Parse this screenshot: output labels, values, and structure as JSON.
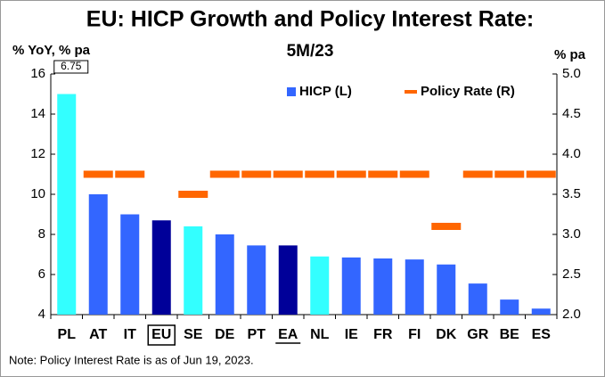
{
  "chart_data": {
    "type": "bar_line",
    "title": "EU: HICP Growth and Policy Interest Rate:",
    "subtitle": "5M/23",
    "y_label": "% YoY, % pa",
    "y2_label": "% pa",
    "note": "Note: Policy Interest Rate is as of Jun 19, 2023.",
    "categories": [
      "PL",
      "AT",
      "IT",
      "EU",
      "SE",
      "DE",
      "PT",
      "EA",
      "NL",
      "IE",
      "FR",
      "FI",
      "DK",
      "GR",
      "BE",
      "ES"
    ],
    "boxed_categories": [
      3
    ],
    "underlined_categories": [
      7
    ],
    "series": [
      {
        "name": "HICP (L)",
        "color": "#3366ff",
        "axis": "y",
        "bar_colors": [
          "#33ffff",
          "#3366ff",
          "#3366ff",
          "#000099",
          "#33ffff",
          "#3366ff",
          "#3366ff",
          "#000099",
          "#33ffff",
          "#3366ff",
          "#3366ff",
          "#3366ff",
          "#3366ff",
          "#3366ff",
          "#3366ff",
          "#3366ff"
        ],
        "values": [
          15.0,
          10.0,
          9.0,
          8.7,
          8.4,
          8.0,
          7.45,
          7.45,
          6.9,
          6.85,
          6.8,
          6.75,
          6.5,
          5.55,
          4.75,
          4.3
        ]
      },
      {
        "name": "Policy Rate (R)",
        "color": "#ff6600",
        "axis": "y2",
        "values": [
          6.75,
          3.75,
          3.75,
          null,
          3.5,
          3.75,
          3.75,
          3.75,
          3.75,
          3.75,
          3.75,
          3.75,
          3.1,
          3.75,
          3.75,
          3.75
        ]
      }
    ],
    "ylim": [
      4,
      16
    ],
    "yticks": [
      4,
      6,
      8,
      10,
      12,
      14,
      16
    ],
    "y2lim": [
      2,
      5
    ],
    "y2ticks": [
      {
        "value": 2,
        "label": "2.0"
      },
      {
        "value": 2.5,
        "label": "2.5"
      },
      {
        "value": 3,
        "label": "3.0"
      },
      {
        "value": 3.5,
        "label": "3.5"
      },
      {
        "value": 4,
        "label": "4.0"
      },
      {
        "value": 4.5,
        "label": "4.5"
      },
      {
        "value": 5,
        "label": "5.0"
      }
    ],
    "legend": "upper right",
    "grid": false
  }
}
